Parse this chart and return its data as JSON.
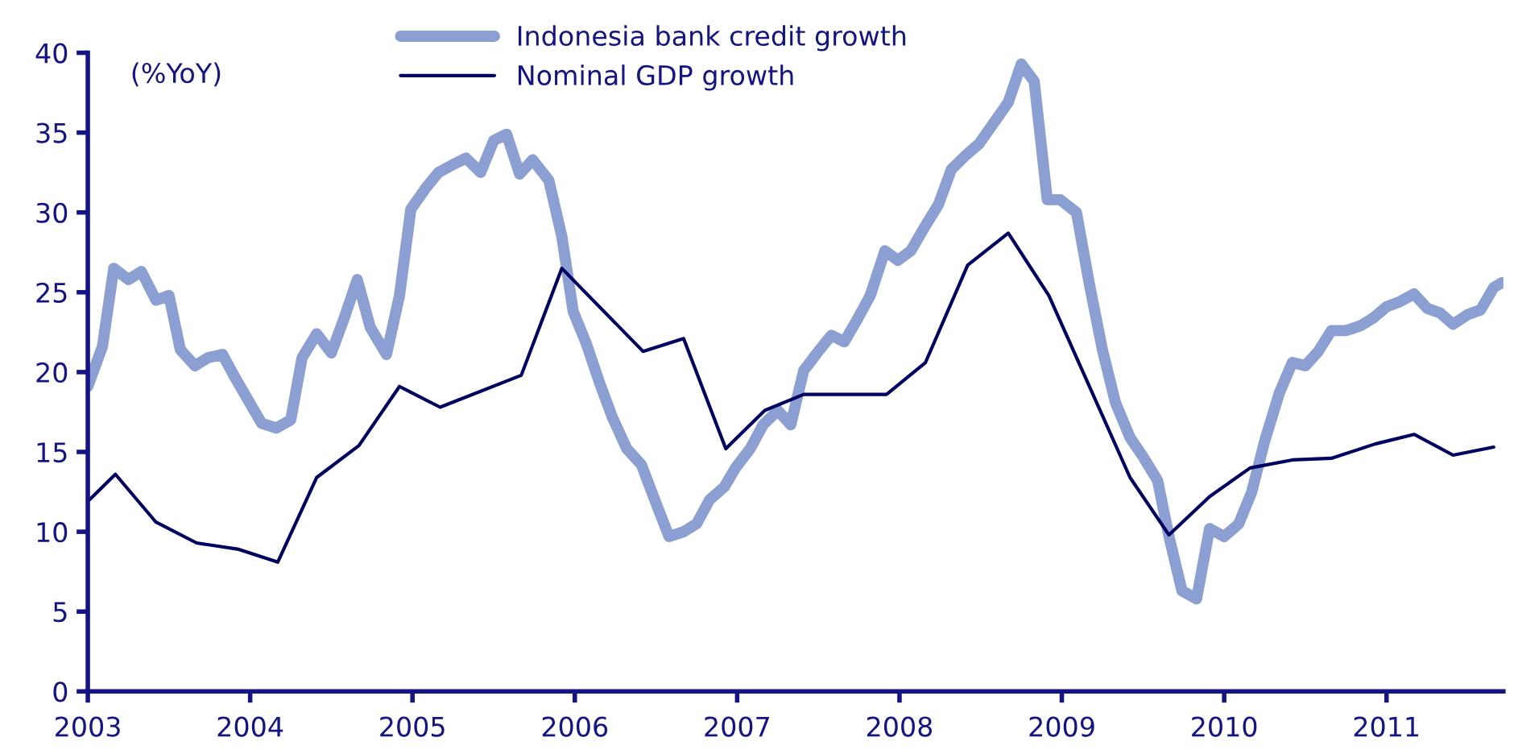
{
  "chart_data": {
    "type": "line",
    "ylabel": "(%YoY)",
    "xlim": [
      2003,
      2011.72
    ],
    "ylim": [
      0,
      40
    ],
    "xticks": [
      2003,
      2004,
      2005,
      2006,
      2007,
      2008,
      2009,
      2010,
      2011
    ],
    "yticks": [
      0,
      5,
      10,
      15,
      20,
      25,
      30,
      35,
      40
    ],
    "grid": false,
    "legend": "top",
    "marker": "none",
    "line_style": "solid",
    "series": [
      {
        "name": "Indonesia bank credit growth",
        "color": "#8c9fd2",
        "x": [
          2003.0,
          2003.09,
          2003.16,
          2003.25,
          2003.33,
          2003.42,
          2003.5,
          2003.57,
          2003.66,
          2003.74,
          2003.83,
          2003.91,
          2003.99,
          2004.07,
          2004.16,
          2004.25,
          2004.32,
          2004.41,
          2004.5,
          2004.58,
          2004.66,
          2004.74,
          2004.84,
          2004.92,
          2004.99,
          2005.08,
          2005.16,
          2005.25,
          2005.33,
          2005.42,
          2005.5,
          2005.58,
          2005.66,
          2005.74,
          2005.84,
          2005.92,
          2005.99,
          2006.07,
          2006.15,
          2006.23,
          2006.32,
          2006.41,
          2006.5,
          2006.58,
          2006.67,
          2006.75,
          2006.83,
          2006.92,
          2006.99,
          2007.08,
          2007.16,
          2007.25,
          2007.33,
          2007.41,
          2007.5,
          2007.58,
          2007.66,
          2007.74,
          2007.82,
          2007.91,
          2007.99,
          2008.07,
          2008.15,
          2008.24,
          2008.32,
          2008.4,
          2008.49,
          2008.58,
          2008.67,
          2008.75,
          2008.83,
          2008.91,
          2008.99,
          2009.09,
          2009.17,
          2009.25,
          2009.33,
          2009.42,
          2009.5,
          2009.59,
          2009.66,
          2009.74,
          2009.83,
          2009.91,
          2010.0,
          2010.09,
          2010.17,
          2010.25,
          2010.34,
          2010.42,
          2010.5,
          2010.58,
          2010.66,
          2010.75,
          2010.84,
          2010.92,
          2011.0,
          2011.08,
          2011.17,
          2011.25,
          2011.33,
          2011.41,
          2011.5,
          2011.58,
          2011.66,
          2011.71
        ],
        "values": [
          19.1,
          21.6,
          26.5,
          25.8,
          26.3,
          24.5,
          24.8,
          21.4,
          20.4,
          20.9,
          21.1,
          19.6,
          18.2,
          16.8,
          16.5,
          17.0,
          20.9,
          22.4,
          21.2,
          23.4,
          25.8,
          22.8,
          21.1,
          24.8,
          30.2,
          31.5,
          32.5,
          33.0,
          33.4,
          32.5,
          34.5,
          34.9,
          32.4,
          33.3,
          32.0,
          28.5,
          23.8,
          21.8,
          19.4,
          17.2,
          15.2,
          14.2,
          11.8,
          9.7,
          10.0,
          10.5,
          12.0,
          12.8,
          14.0,
          15.2,
          16.7,
          17.6,
          16.7,
          20.1,
          21.3,
          22.3,
          21.9,
          23.3,
          24.8,
          27.6,
          27.0,
          27.6,
          29.0,
          30.5,
          32.7,
          33.5,
          34.3,
          35.6,
          36.9,
          39.3,
          38.2,
          30.8,
          30.8,
          30.0,
          25.5,
          21.4,
          18.1,
          15.9,
          14.7,
          13.2,
          9.7,
          6.3,
          5.8,
          10.2,
          9.7,
          10.5,
          12.5,
          15.7,
          18.7,
          20.6,
          20.4,
          21.3,
          22.6,
          22.6,
          22.9,
          23.4,
          24.1,
          24.4,
          24.9,
          24.0,
          23.7,
          23.0,
          23.6,
          23.9,
          25.3,
          25.6
        ]
      },
      {
        "name": "Nominal GDP growth",
        "color": "#000060",
        "x": [
          2003.0,
          2003.17,
          2003.42,
          2003.67,
          2003.93,
          2004.17,
          2004.41,
          2004.67,
          2004.92,
          2005.17,
          2005.67,
          2005.92,
          2006.42,
          2006.67,
          2006.93,
          2007.17,
          2007.41,
          2007.92,
          2008.16,
          2008.42,
          2008.67,
          2008.92,
          2009.42,
          2009.66,
          2009.91,
          2010.16,
          2010.42,
          2010.66,
          2010.93,
          2011.17,
          2011.41,
          2011.66
        ],
        "values": [
          11.9,
          13.6,
          10.6,
          9.3,
          8.9,
          8.1,
          13.4,
          15.4,
          19.1,
          17.8,
          19.8,
          26.5,
          21.3,
          22.1,
          15.2,
          17.6,
          18.6,
          18.6,
          20.6,
          26.7,
          28.7,
          24.8,
          13.4,
          9.8,
          12.2,
          14.0,
          14.5,
          14.6,
          15.5,
          16.1,
          14.8,
          15.3
        ]
      }
    ]
  }
}
